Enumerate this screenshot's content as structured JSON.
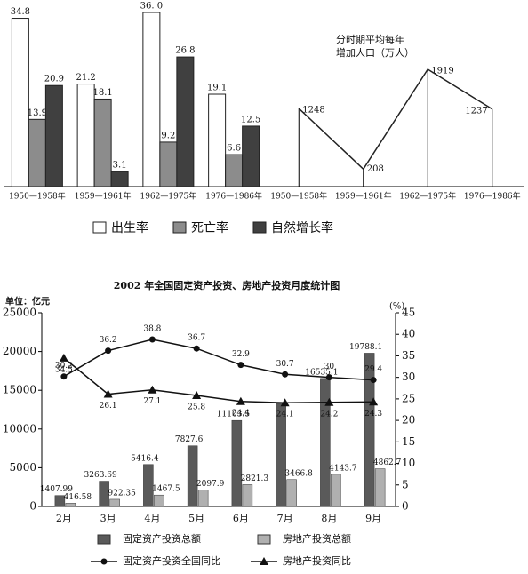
{
  "chart_data": [
    {
      "type": "bar",
      "categories": [
        "1950—1958年",
        "1959—1961年",
        "1962—1975年",
        "1976—1986年"
      ],
      "series": [
        {
          "name": "出生率",
          "color": "#ffffff",
          "values": [
            34.8,
            21.2,
            36.0,
            19.1
          ],
          "value_labels": [
            "34.8",
            "21.2",
            "36. 0",
            "19.1"
          ]
        },
        {
          "name": "死亡率",
          "color": "#8c8c8c",
          "values": [
            13.9,
            18.1,
            9.2,
            6.6
          ]
        },
        {
          "name": "自然增长率",
          "color": "#404040",
          "values": [
            20.9,
            3.1,
            26.8,
            12.5
          ]
        }
      ]
    },
    {
      "type": "line",
      "title": [
        "分时期平均每年",
        "增加人口（万人）"
      ],
      "categories": [
        "1950—1958年",
        "1959—1961年",
        "1962—1975年",
        "1976—1986年"
      ],
      "values": [
        1248,
        208,
        1919,
        1237
      ],
      "color": "#222222"
    },
    {
      "type": "combo",
      "title": "2002 年全国固定资产投资、房地产投资月度统计图",
      "y_label": "单位：亿元",
      "y2_label": "(%)",
      "categories": [
        "2月",
        "3月",
        "4月",
        "5月",
        "6月",
        "7月",
        "8月",
        "9月"
      ],
      "ylim": [
        0,
        25000
      ],
      "yticks": [
        0,
        5000,
        10000,
        15000,
        20000,
        25000
      ],
      "y2lim": [
        0,
        45
      ],
      "y2ticks": [
        0,
        5,
        10,
        15,
        20,
        25,
        30,
        35,
        40,
        45
      ],
      "series": [
        {
          "name": "固定资产投资总额",
          "type": "bar",
          "color": "#5a5a5a",
          "values": [
            1407.99,
            3263.69,
            5416.4,
            7827.6,
            11103.5,
            13300,
            16535.1,
            19788.1
          ],
          "value_labels": [
            "1407.99",
            "3263.69",
            "5416.4",
            "7827.6",
            "11103.5",
            null,
            "16535.1",
            "19788.1"
          ]
        },
        {
          "name": "房地产投资总额",
          "type": "bar",
          "color": "#b0b0b0",
          "values": [
            416.58,
            922.35,
            1467.5,
            2097.9,
            2821.3,
            3466.8,
            4143.7,
            4862.7
          ]
        },
        {
          "name": "固定资产投资全国同比",
          "type": "line",
          "axis": "y2",
          "marker": "circle",
          "color": "#111111",
          "values": [
            30.2,
            36.2,
            38.8,
            36.7,
            32.9,
            30.7,
            30,
            29.4
          ]
        },
        {
          "name": "房地产投资同比",
          "type": "line",
          "axis": "y2",
          "marker": "triangle",
          "color": "#111111",
          "values": [
            34.5,
            26.1,
            27.1,
            25.8,
            24.4,
            24.1,
            24.2,
            24.3
          ]
        }
      ]
    }
  ]
}
